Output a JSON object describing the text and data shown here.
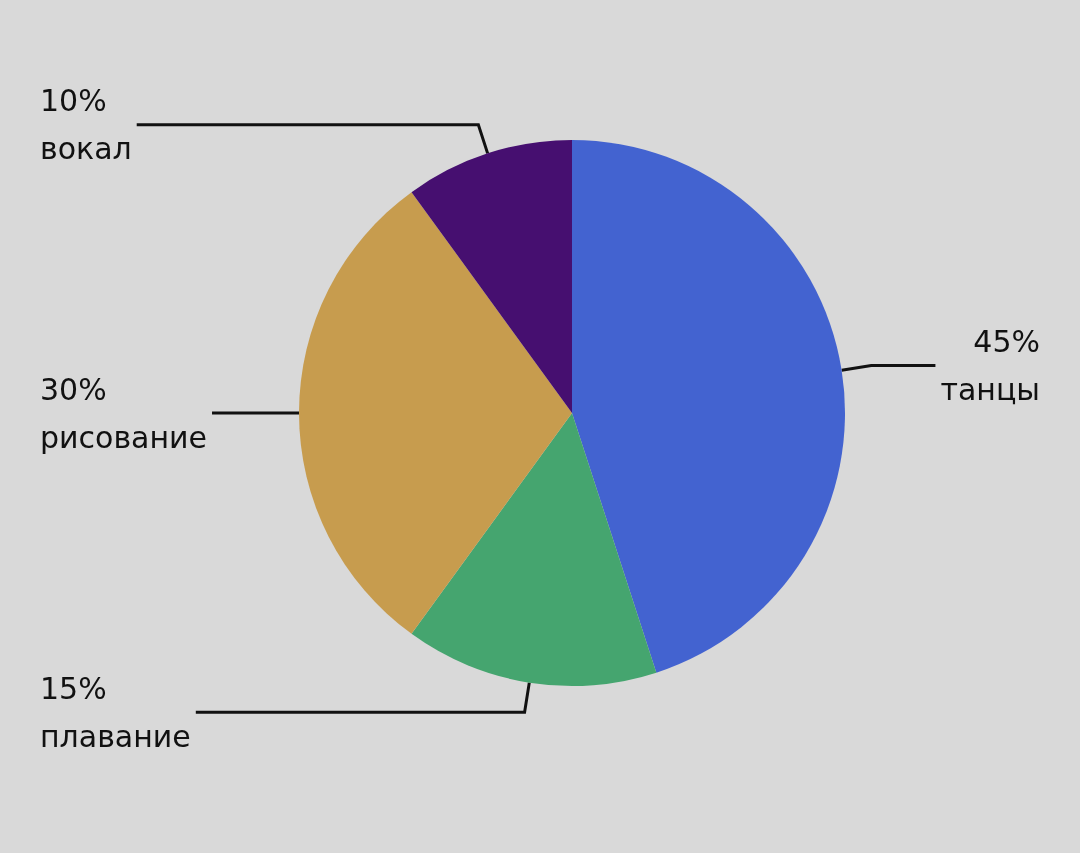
{
  "chart_data": {
    "type": "pie",
    "categories": [
      "танцы",
      "плавание",
      "рисование",
      "вокал"
    ],
    "values": [
      45,
      15,
      30,
      10
    ],
    "colors": [
      "#4363d0",
      "#45a56f",
      "#c79c4e",
      "#460f70"
    ],
    "value_labels": [
      "45%",
      "15%",
      "30%",
      "10%"
    ],
    "legend": false
  }
}
